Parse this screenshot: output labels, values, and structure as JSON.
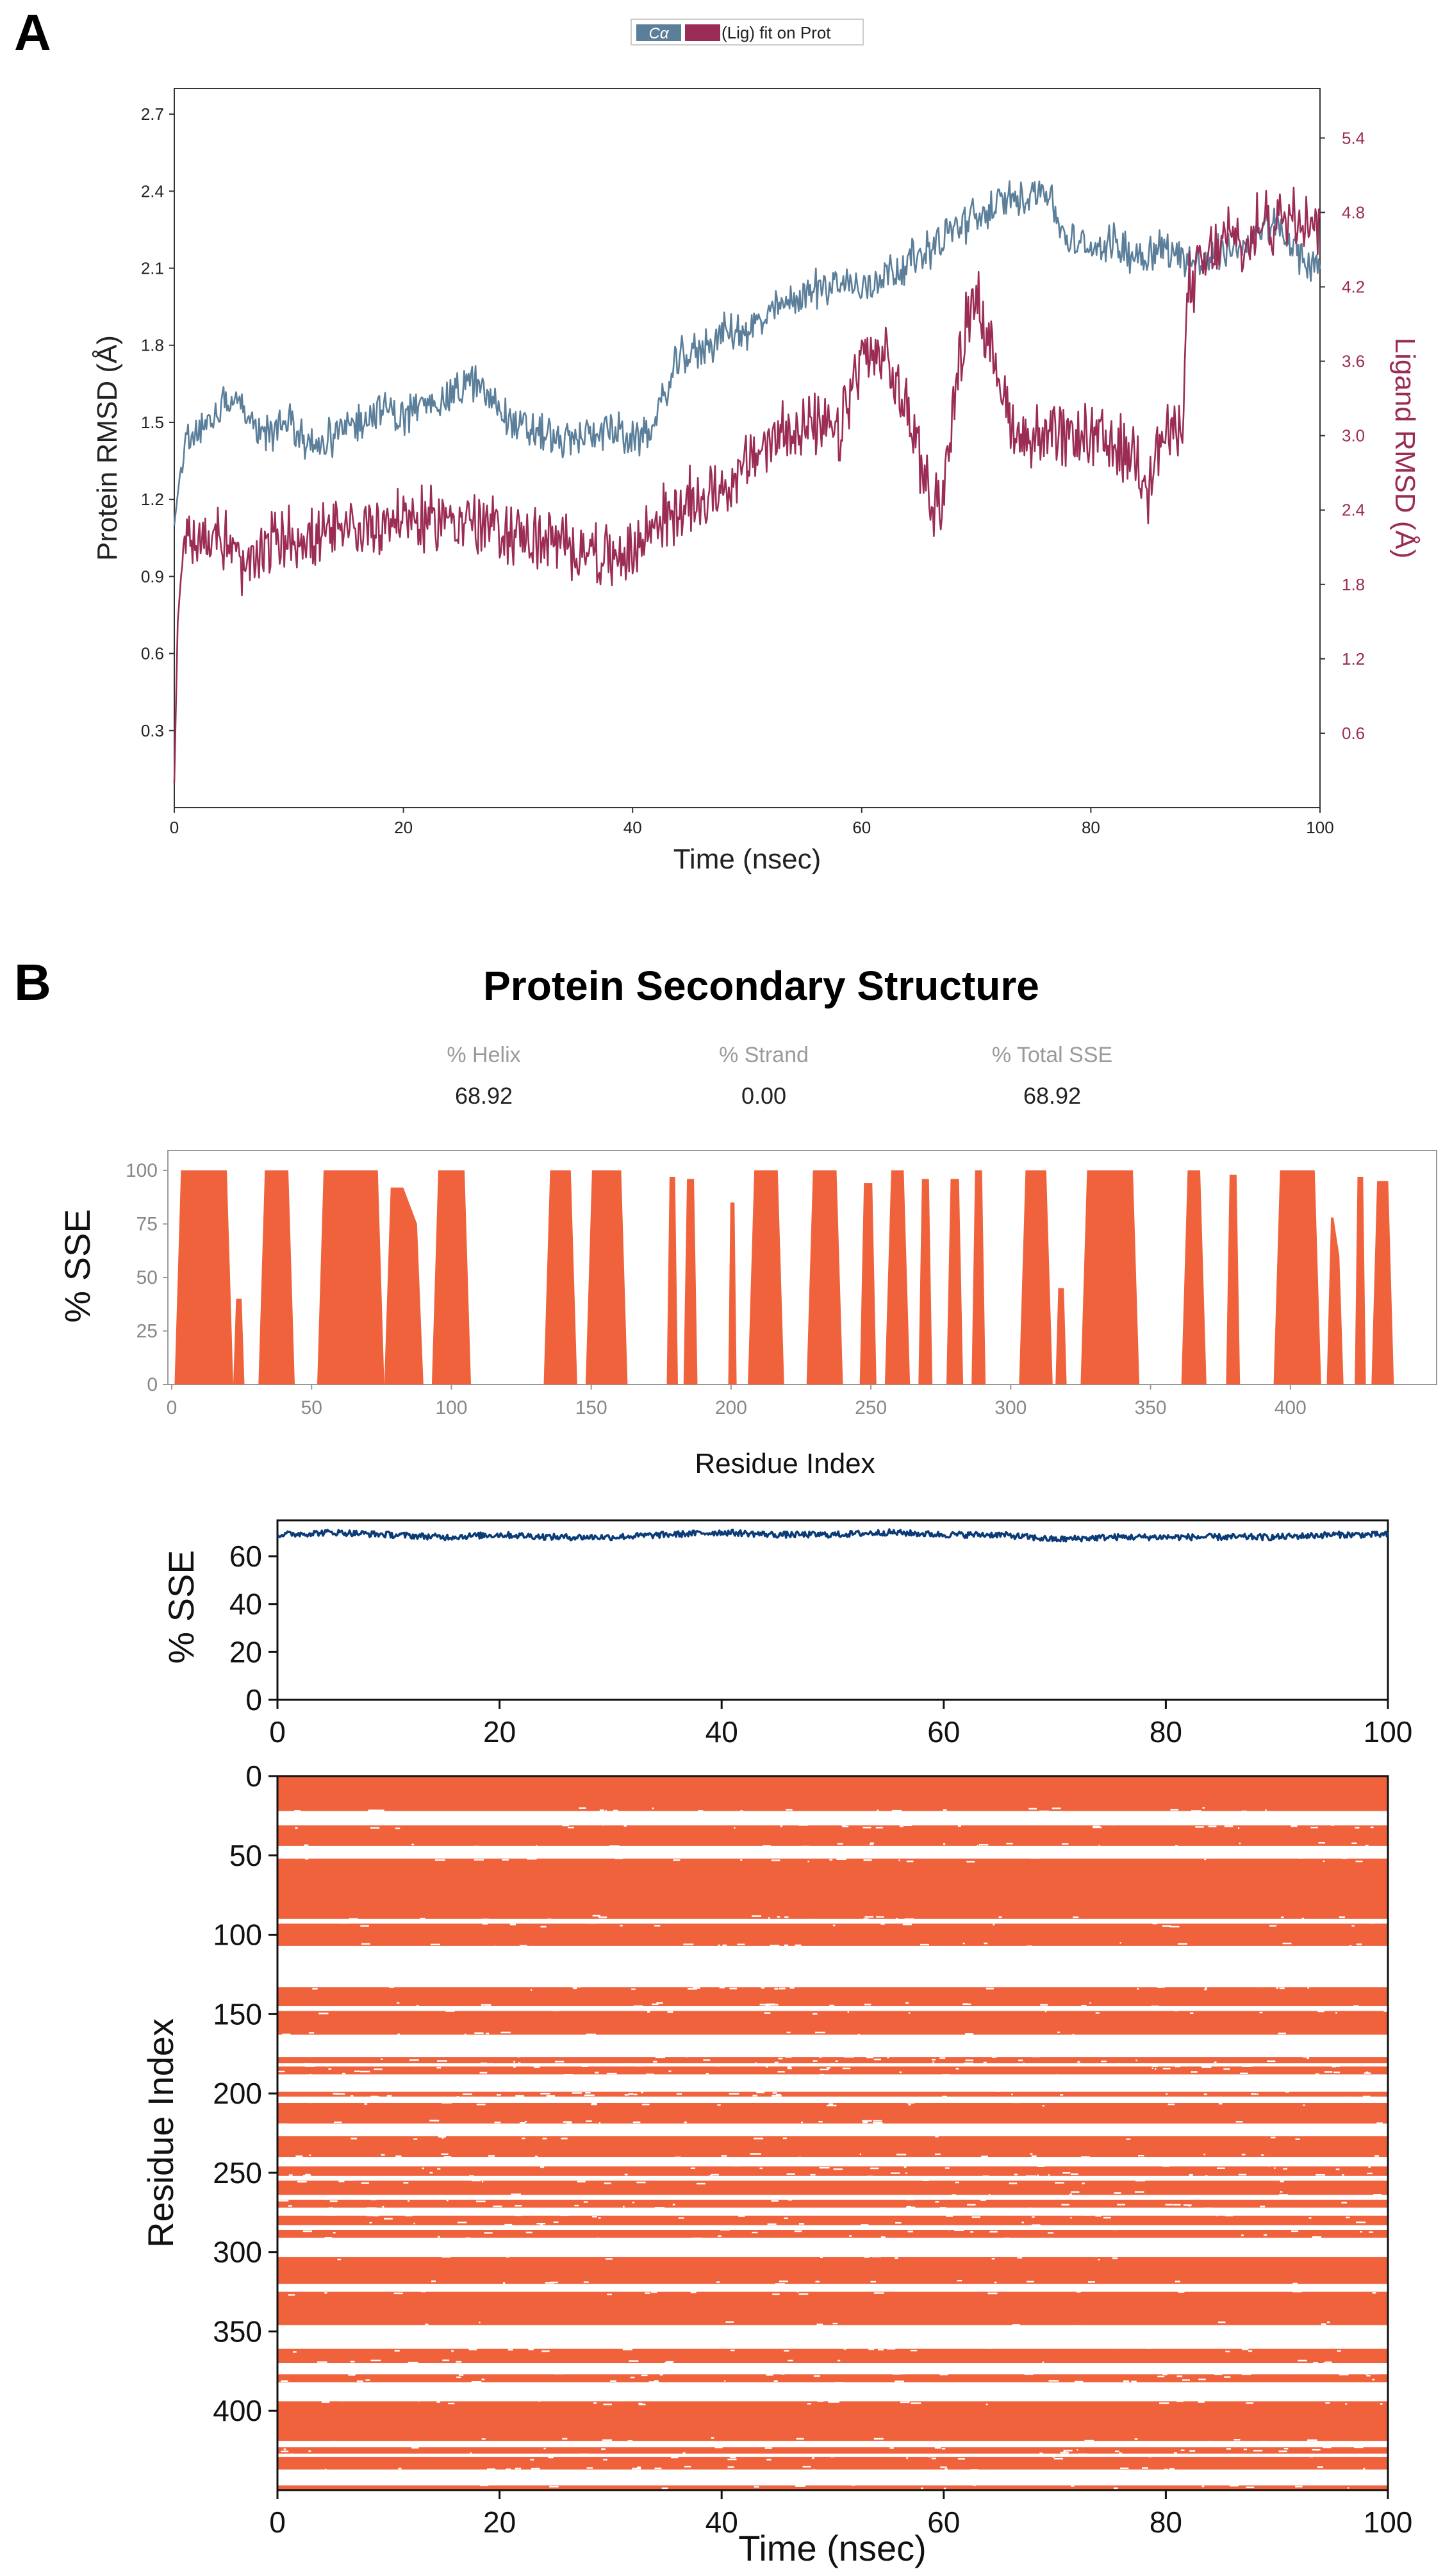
{
  "panels": {
    "a": "A",
    "b": "B"
  },
  "colors": {
    "protein": "#5b7f9a",
    "ligand": "#9b2c55",
    "sse_fill": "#f0623c",
    "sse_line": "#0b3c78"
  },
  "chart_data": [
    {
      "type": "line",
      "legend": {
        "placement": "top-center",
        "entries": [
          "Cα",
          "(Lig) fit on Prot"
        ]
      },
      "xlabel": "Time (nsec)",
      "ylabel_left": "Protein RMSD (Å)",
      "ylabel_right": "Ligand RMSD (Å)",
      "xlim": [
        0,
        100
      ],
      "ylim_left": [
        0,
        2.8
      ],
      "ylim_right": [
        0,
        5.8
      ],
      "x_ticks": [
        "0",
        "20",
        "40",
        "60",
        "80",
        "100"
      ],
      "y_ticks_left": [
        "0.3",
        "0.6",
        "0.9",
        "1.2",
        "1.5",
        "1.8",
        "2.1",
        "2.4",
        "2.7"
      ],
      "y_ticks_right": [
        "0.6",
        "1.2",
        "1.8",
        "2.4",
        "3.0",
        "3.6",
        "4.2",
        "4.8",
        "5.4"
      ],
      "grid": false,
      "series": [
        {
          "name": "Cα",
          "axis": "left",
          "x": [
            0,
            0.5,
            1,
            2,
            3,
            4,
            5,
            6,
            8,
            10,
            12,
            14,
            16,
            18,
            20,
            22,
            24,
            26,
            28,
            30,
            32,
            34,
            36,
            38,
            40,
            42,
            44,
            46,
            48,
            50,
            52,
            54,
            56,
            58,
            60,
            62,
            64,
            66,
            68,
            70,
            72,
            74,
            76,
            77,
            78,
            80,
            82,
            84,
            86,
            88,
            90,
            92,
            94,
            96,
            98,
            100
          ],
          "y": [
            1.1,
            1.3,
            1.42,
            1.48,
            1.5,
            1.55,
            1.62,
            1.55,
            1.45,
            1.5,
            1.4,
            1.45,
            1.5,
            1.55,
            1.52,
            1.58,
            1.6,
            1.66,
            1.58,
            1.48,
            1.46,
            1.42,
            1.45,
            1.48,
            1.42,
            1.5,
            1.75,
            1.78,
            1.85,
            1.85,
            1.92,
            1.98,
            2.02,
            2.05,
            2.02,
            2.08,
            2.12,
            2.18,
            2.25,
            2.3,
            2.35,
            2.38,
            2.42,
            2.3,
            2.2,
            2.18,
            2.2,
            2.15,
            2.18,
            2.15,
            2.12,
            2.18,
            2.2,
            2.28,
            2.15,
            2.1
          ]
        },
        {
          "name": "(Lig) fit on Prot",
          "axis": "right",
          "x": [
            0,
            0.3,
            0.7,
            1,
            2,
            3,
            4,
            5,
            6,
            8,
            10,
            12,
            14,
            16,
            18,
            20,
            22,
            24,
            26,
            28,
            30,
            32,
            34,
            36,
            38,
            40,
            42,
            44,
            46,
            48,
            50,
            52,
            54,
            56,
            58,
            60,
            62,
            64,
            66,
            67,
            68,
            69,
            70,
            71,
            72,
            73,
            74,
            76,
            78,
            80,
            82,
            84,
            85,
            86,
            87,
            88,
            88.5,
            90,
            92,
            94,
            95,
            96,
            98,
            100
          ],
          "y": [
            0.2,
            1.5,
            2.0,
            2.2,
            2.2,
            2.15,
            2.2,
            2.1,
            1.9,
            2.1,
            2.2,
            2.15,
            2.2,
            2.25,
            2.3,
            2.35,
            2.3,
            2.35,
            2.3,
            2.25,
            2.2,
            2.15,
            2.1,
            2.1,
            2.0,
            2.05,
            2.3,
            2.4,
            2.5,
            2.6,
            2.75,
            2.95,
            3.1,
            3.05,
            3.0,
            3.65,
            3.6,
            3.2,
            2.5,
            2.45,
            3.2,
            3.9,
            4.2,
            3.7,
            3.5,
            3.1,
            3.0,
            3.0,
            2.95,
            3.0,
            2.9,
            2.85,
            2.6,
            2.95,
            3.0,
            3.1,
            4.2,
            4.4,
            4.6,
            4.5,
            4.8,
            4.7,
            4.85,
            4.7
          ]
        }
      ]
    },
    {
      "type": "area",
      "title": "Protein Secondary Structure",
      "stats": [
        {
          "label": "% Helix",
          "value": "68.92"
        },
        {
          "label": "% Strand",
          "value": "0.00"
        },
        {
          "label": "% Total SSE",
          "value": "68.92"
        }
      ],
      "xlabel": "Residue Index",
      "ylabel": "% SSE",
      "xlim": [
        0,
        450
      ],
      "ylim": [
        0,
        100
      ],
      "x_ticks": [
        "0",
        "50",
        "100",
        "150",
        "200",
        "250",
        "300",
        "350",
        "400"
      ],
      "y_ticks": [
        "0",
        "25",
        "50",
        "75",
        "100"
      ],
      "grid": false,
      "helix_segments": [
        {
          "start": 1,
          "end": 22,
          "peak": 100,
          "shoulder": 100
        },
        {
          "start": 22,
          "end": 26,
          "peak": 40,
          "shoulder": 40
        },
        {
          "start": 31,
          "end": 44,
          "peak": 100,
          "shoulder": 100
        },
        {
          "start": 52,
          "end": 76,
          "peak": 100,
          "shoulder": 100
        },
        {
          "start": 76,
          "end": 90,
          "peak": 92,
          "shoulder": 75
        },
        {
          "start": 93,
          "end": 107,
          "peak": 100,
          "shoulder": 100
        },
        {
          "start": 133,
          "end": 145,
          "peak": 100,
          "shoulder": 100
        },
        {
          "start": 148,
          "end": 163,
          "peak": 100,
          "shoulder": 100
        },
        {
          "start": 177,
          "end": 181,
          "peak": 97,
          "shoulder": 97
        },
        {
          "start": 183,
          "end": 188,
          "peak": 96,
          "shoulder": 96
        },
        {
          "start": 199,
          "end": 202,
          "peak": 85,
          "shoulder": 85
        },
        {
          "start": 206,
          "end": 219,
          "peak": 100,
          "shoulder": 100
        },
        {
          "start": 227,
          "end": 240,
          "peak": 100,
          "shoulder": 100
        },
        {
          "start": 246,
          "end": 252,
          "peak": 94,
          "shoulder": 94
        },
        {
          "start": 255,
          "end": 264,
          "peak": 100,
          "shoulder": 100
        },
        {
          "start": 267,
          "end": 272,
          "peak": 96,
          "shoulder": 96
        },
        {
          "start": 277,
          "end": 283,
          "peak": 96,
          "shoulder": 96
        },
        {
          "start": 286,
          "end": 291,
          "peak": 100,
          "shoulder": 100
        },
        {
          "start": 303,
          "end": 315,
          "peak": 100,
          "shoulder": 100
        },
        {
          "start": 316,
          "end": 320,
          "peak": 45,
          "shoulder": 45
        },
        {
          "start": 325,
          "end": 346,
          "peak": 100,
          "shoulder": 100
        },
        {
          "start": 361,
          "end": 370,
          "peak": 100,
          "shoulder": 100
        },
        {
          "start": 377,
          "end": 382,
          "peak": 98,
          "shoulder": 98
        },
        {
          "start": 394,
          "end": 411,
          "peak": 100,
          "shoulder": 100
        },
        {
          "start": 413,
          "end": 419,
          "peak": 78,
          "shoulder": 60
        },
        {
          "start": 423,
          "end": 427,
          "peak": 97,
          "shoulder": 97
        },
        {
          "start": 429,
          "end": 437,
          "peak": 95,
          "shoulder": 95
        }
      ]
    },
    {
      "type": "line",
      "xlabel": "",
      "ylabel": "% SSE",
      "xlim": [
        0,
        100
      ],
      "ylim": [
        0,
        75
      ],
      "x_ticks": [
        "0",
        "20",
        "40",
        "60",
        "80",
        "100"
      ],
      "y_ticks": [
        "0",
        "20",
        "40",
        "60"
      ],
      "grid": false,
      "series": [
        {
          "x": [
            0,
            5,
            10,
            15,
            20,
            25,
            30,
            35,
            40,
            45,
            50,
            55,
            60,
            65,
            70,
            75,
            80,
            85,
            90,
            95,
            100
          ],
          "y": [
            69,
            70,
            69,
            68,
            69,
            68,
            68,
            69,
            70,
            69,
            69,
            70,
            69,
            69,
            67,
            68,
            68,
            68,
            68,
            69,
            69
          ]
        }
      ]
    },
    {
      "type": "heatmap",
      "xlabel": "Time (nsec)",
      "ylabel": "Residue Index",
      "xlim": [
        0,
        100
      ],
      "ylim": [
        0,
        450
      ],
      "x_ticks": [
        "0",
        "20",
        "40",
        "60",
        "80",
        "100"
      ],
      "y_ticks": [
        "0",
        "50",
        "100",
        "150",
        "200",
        "250",
        "300",
        "350",
        "400"
      ],
      "grid": false,
      "white_bands_residue": [
        [
          22,
          31
        ],
        [
          44,
          52
        ],
        [
          90,
          93
        ],
        [
          107,
          133
        ],
        [
          145,
          148
        ],
        [
          163,
          177
        ],
        [
          181,
          183
        ],
        [
          188,
          199
        ],
        [
          202,
          206
        ],
        [
          219,
          227
        ],
        [
          240,
          246
        ],
        [
          252,
          255
        ],
        [
          264,
          267
        ],
        [
          272,
          277
        ],
        [
          283,
          286
        ],
        [
          291,
          303
        ],
        [
          320,
          325
        ],
        [
          346,
          361
        ],
        [
          370,
          377
        ],
        [
          382,
          394
        ],
        [
          419,
          423
        ],
        [
          427,
          429
        ],
        [
          437,
          447
        ]
      ]
    }
  ]
}
